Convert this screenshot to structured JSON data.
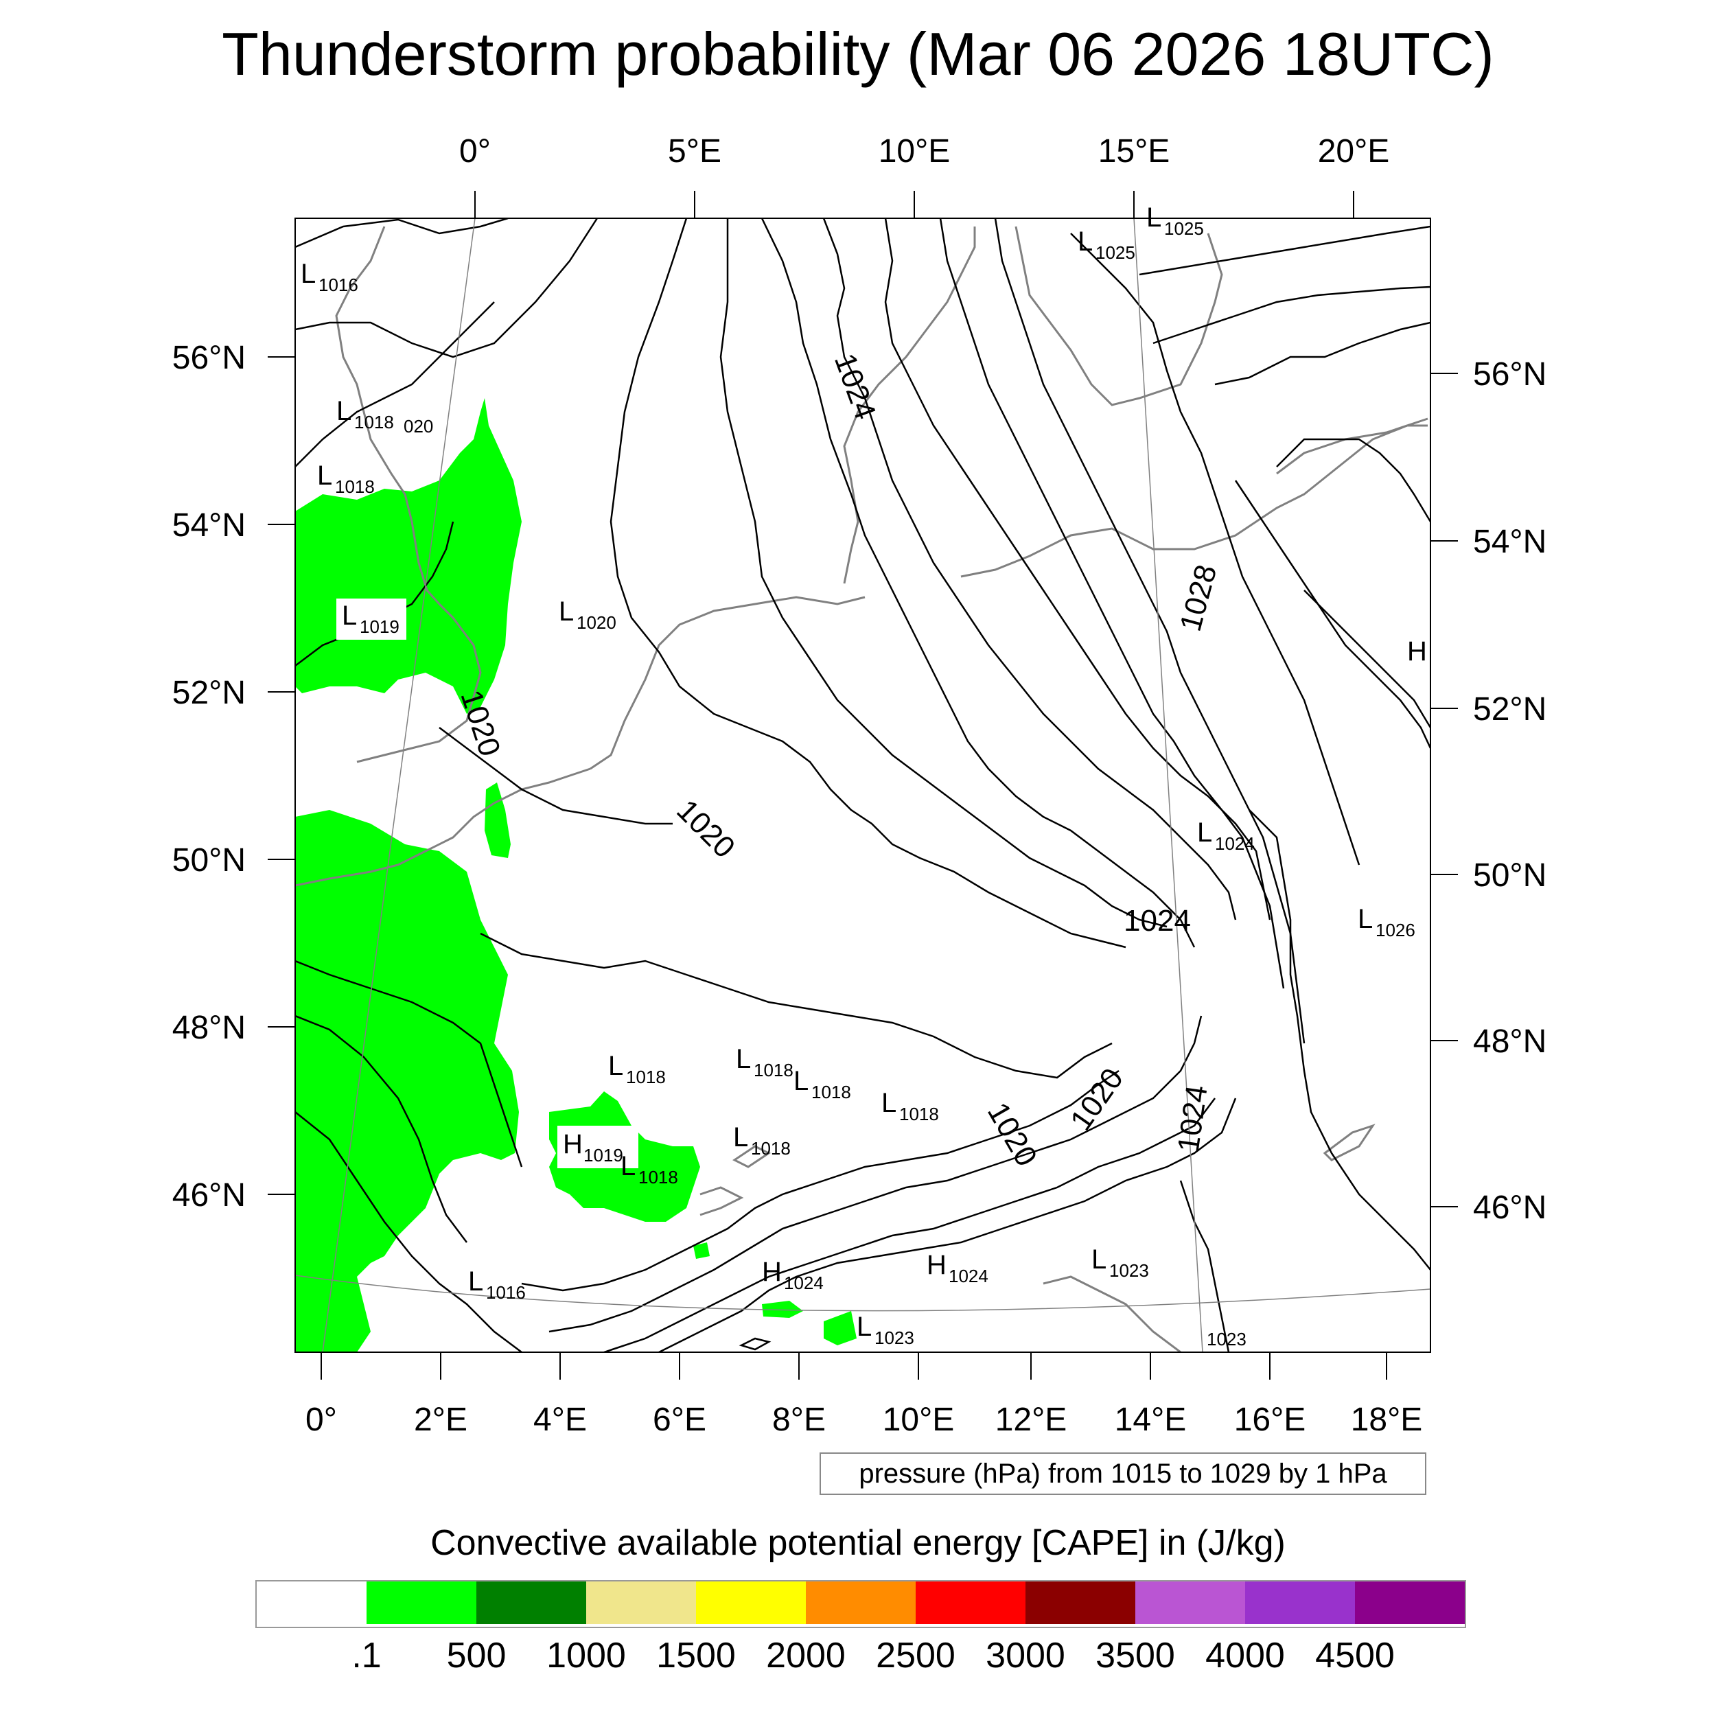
{
  "title": "Thunderstorm probability (Mar 06 2026 18UTC)",
  "axes": {
    "top_lon_labels": [
      "0°",
      "5°E",
      "10°E",
      "15°E",
      "20°E"
    ],
    "bottom_lon_labels": [
      "0°",
      "2°E",
      "4°E",
      "6°E",
      "8°E",
      "10°E",
      "12°E",
      "14°E",
      "16°E",
      "18°E"
    ],
    "left_lat_labels": [
      "56°N",
      "54°N",
      "52°N",
      "50°N",
      "48°N",
      "46°N"
    ],
    "right_lat_labels": [
      "56°N",
      "54°N",
      "52°N",
      "50°N",
      "48°N",
      "46°N"
    ]
  },
  "isobar_labels": [
    "1024",
    "1028",
    "1020",
    "1020",
    "1024",
    "1020",
    "1020",
    "1024"
  ],
  "pressure_centers": [
    {
      "letter": "L",
      "value": "1016"
    },
    {
      "letter": "L",
      "value": "1025"
    },
    {
      "letter": "L",
      "value": "1025"
    },
    {
      "letter": "L",
      "value": "1018"
    },
    {
      "letter": "",
      "value": "020"
    },
    {
      "letter": "L",
      "value": "1018"
    },
    {
      "letter": "L",
      "value": "1019"
    },
    {
      "letter": "L",
      "value": "1020"
    },
    {
      "letter": "H",
      "value": ""
    },
    {
      "letter": "L",
      "value": "1024"
    },
    {
      "letter": "L",
      "value": "1026"
    },
    {
      "letter": "L",
      "value": "1018"
    },
    {
      "letter": "L",
      "value": "1018"
    },
    {
      "letter": "L",
      "value": "1018"
    },
    {
      "letter": "L",
      "value": "1018"
    },
    {
      "letter": "L",
      "value": "1018"
    },
    {
      "letter": "H",
      "value": "1019"
    },
    {
      "letter": "L",
      "value": "1018"
    },
    {
      "letter": "L",
      "value": "1016"
    },
    {
      "letter": "H",
      "value": "1024"
    },
    {
      "letter": "H",
      "value": "1024"
    },
    {
      "letter": "L",
      "value": "1023"
    },
    {
      "letter": "L",
      "value": "1023"
    },
    {
      "letter": "",
      "value": "1023"
    }
  ],
  "contour_info": "pressure (hPa) from 1015 to 1029 by 1 hPa",
  "colorbar": {
    "title": "Convective available potential energy [CAPE] in (J/kg)",
    "colors": [
      "#ffffff",
      "#00ff00",
      "#008000",
      "#f0e68c",
      "#ffff00",
      "#ff8c00",
      "#ff0000",
      "#8b0000",
      "#ba55d3",
      "#9932cc",
      "#8b008b"
    ],
    "labels": [
      ".1",
      "500",
      "1000",
      "1500",
      "2000",
      "2500",
      "3000",
      "3500",
      "4000",
      "4500"
    ]
  },
  "cape_fill_color": "#00ff00"
}
